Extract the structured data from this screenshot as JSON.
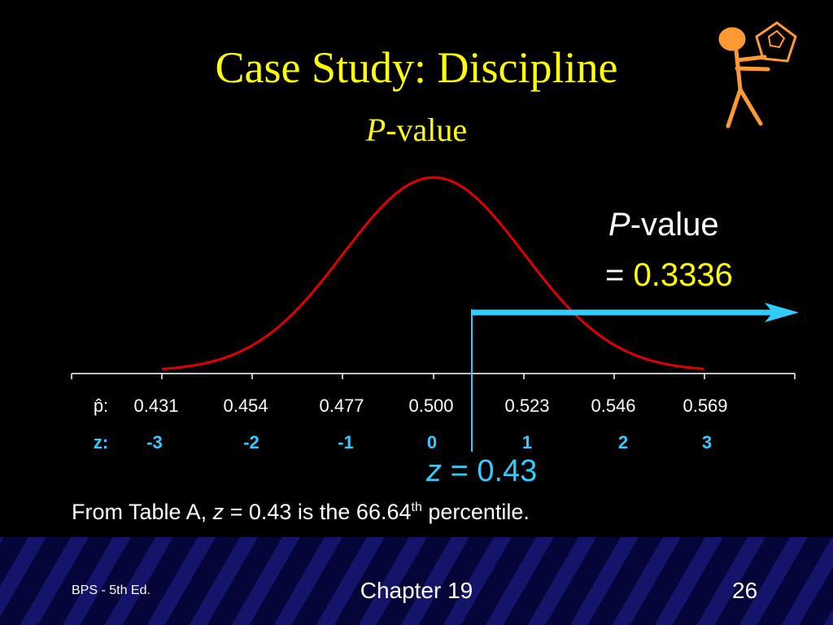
{
  "title": "Case Study:  Discipline",
  "subtitle": {
    "italic": "P",
    "rest": "-value"
  },
  "axis": {
    "phat_label": "p̂:",
    "phat": [
      "0.431",
      "0.454",
      "0.477",
      "0.500",
      "0.523",
      "0.546",
      "0.569"
    ],
    "z_label": "z:",
    "z": [
      "-3",
      "-2",
      "-1",
      "0",
      "1",
      "2",
      "3"
    ]
  },
  "pvalue": {
    "italic": "P",
    "rest": "-value",
    "eq": "=",
    "value": "0.3336"
  },
  "z_marker": {
    "italic": "z",
    "eq": "=",
    "value": "0.43"
  },
  "note": {
    "pre": "From Table A, ",
    "italic": "z",
    "mid": " = 0.43 is the 66.64",
    "sup": "th",
    "post": " percentile."
  },
  "footer": {
    "left": "BPS - 5th Ed.",
    "center": "Chapter 19",
    "right": "26"
  }
}
